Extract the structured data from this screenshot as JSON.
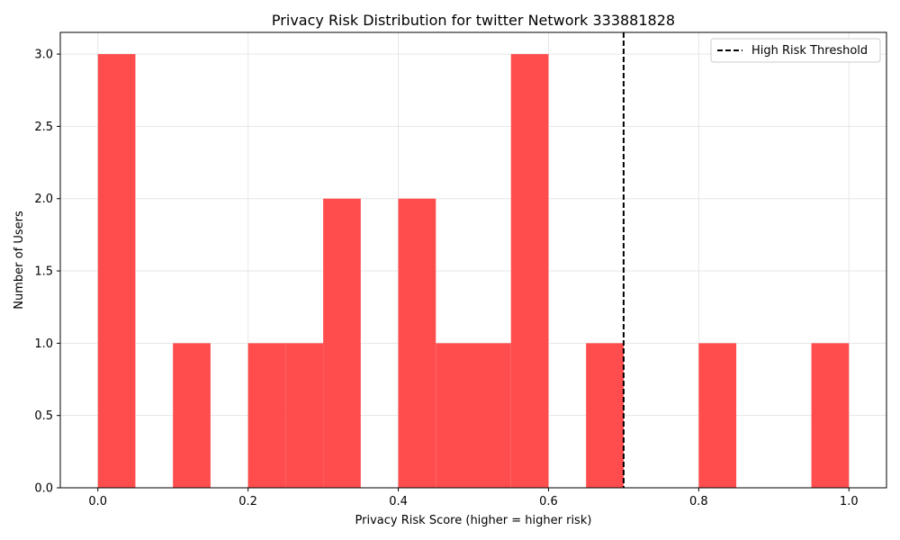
{
  "chart_data": {
    "type": "bar",
    "title": "Privacy Risk Distribution for twitter Network 333881828",
    "xlabel": "Privacy Risk Score (higher = higher risk)",
    "ylabel": "Number of Users",
    "xlim": [
      -0.05,
      1.05
    ],
    "ylim": [
      0,
      3.15
    ],
    "xticks": [
      0.0,
      0.2,
      0.4,
      0.6,
      0.8,
      1.0
    ],
    "xtick_labels": [
      "0.0",
      "0.2",
      "0.4",
      "0.6",
      "0.8",
      "1.0"
    ],
    "yticks": [
      0.0,
      0.5,
      1.0,
      1.5,
      2.0,
      2.5,
      3.0
    ],
    "ytick_labels": [
      "0.0",
      "0.5",
      "1.0",
      "1.5",
      "2.0",
      "2.5",
      "3.0"
    ],
    "grid": true,
    "bar_color": "#ff4d4d",
    "bins": [
      {
        "start": 0.0,
        "end": 0.05,
        "count": 3
      },
      {
        "start": 0.05,
        "end": 0.1,
        "count": 0
      },
      {
        "start": 0.1,
        "end": 0.15,
        "count": 1
      },
      {
        "start": 0.15,
        "end": 0.2,
        "count": 0
      },
      {
        "start": 0.2,
        "end": 0.25,
        "count": 1
      },
      {
        "start": 0.25,
        "end": 0.3,
        "count": 1
      },
      {
        "start": 0.3,
        "end": 0.35,
        "count": 2
      },
      {
        "start": 0.35,
        "end": 0.4,
        "count": 0
      },
      {
        "start": 0.4,
        "end": 0.45,
        "count": 2
      },
      {
        "start": 0.45,
        "end": 0.5,
        "count": 1
      },
      {
        "start": 0.5,
        "end": 0.55,
        "count": 1
      },
      {
        "start": 0.55,
        "end": 0.6,
        "count": 3
      },
      {
        "start": 0.6,
        "end": 0.65,
        "count": 0
      },
      {
        "start": 0.65,
        "end": 0.7,
        "count": 1
      },
      {
        "start": 0.7,
        "end": 0.75,
        "count": 0
      },
      {
        "start": 0.75,
        "end": 0.8,
        "count": 0
      },
      {
        "start": 0.8,
        "end": 0.85,
        "count": 1
      },
      {
        "start": 0.85,
        "end": 0.9,
        "count": 0
      },
      {
        "start": 0.9,
        "end": 0.95,
        "count": 0
      },
      {
        "start": 0.95,
        "end": 1.0,
        "count": 1
      }
    ],
    "threshold": {
      "x": 0.7,
      "label": "High Risk Threshold",
      "color": "#000000",
      "style": "dashed"
    },
    "legend": {
      "position": "top-right",
      "entries": [
        "High Risk Threshold"
      ]
    }
  }
}
